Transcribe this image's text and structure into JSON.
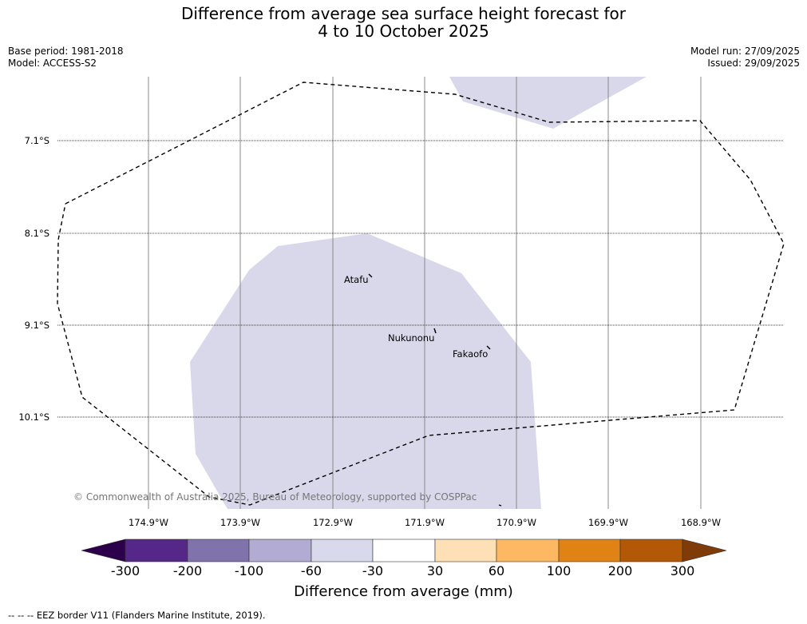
{
  "title": {
    "line1": "Difference from average sea surface height forecast for",
    "line2": "4 to 10 October 2025"
  },
  "meta_left": {
    "base_period": "Base period: 1981-2018",
    "model": "Model: ACCESS-S2"
  },
  "meta_right": {
    "model_run": "Model run: 27/09/2025",
    "issued": "Issued: 29/09/2025"
  },
  "map": {
    "lat_labels": [
      "7.1°S",
      "8.1°S",
      "9.1°S",
      "10.1°S"
    ],
    "lon_labels": [
      "174.9°W",
      "173.9°W",
      "172.9°W",
      "171.9°W",
      "170.9°W",
      "169.9°W",
      "168.9°W"
    ],
    "places": [
      "Atafu",
      "Nukunonu",
      "Fakaofo"
    ],
    "anomaly_class": "-60 to -30",
    "anomaly_color": "#d8d8ea",
    "copyright": "© Commonwealth of Australia 2025, Bureau of Meteorology, supported by COSPPac"
  },
  "colorbar": {
    "ticks": [
      "-300",
      "-200",
      "-100",
      "-60",
      "-30",
      "30",
      "60",
      "100",
      "200",
      "300"
    ],
    "colors": [
      "#2d004b",
      "#542788",
      "#8073ac",
      "#b2abd2",
      "#d8daeb",
      "#ffffff",
      "#fee0b6",
      "#fdb863",
      "#e08214",
      "#b35806",
      "#7f3b08"
    ],
    "label": "Difference from average (mm)"
  },
  "footnote": "--  --  -- EEZ border V11 (Flanders Marine Institute, 2019)."
}
